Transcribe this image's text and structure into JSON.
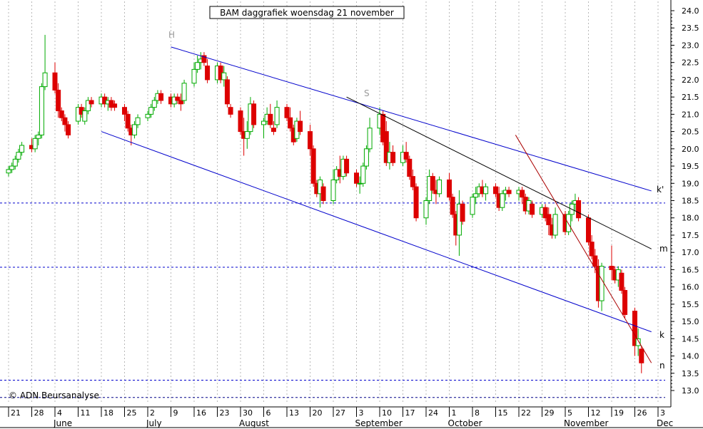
{
  "chart_data": {
    "type": "candlestick",
    "title": "BAM daggrafiek woensdag 21 november",
    "copyright": "© ADN Beursanalyse",
    "ylim": [
      12.7,
      24.2
    ],
    "y_ticks": [
      "24.0",
      "23.5",
      "23.0",
      "22.5",
      "22.0",
      "21.5",
      "21.0",
      "20.5",
      "20.0",
      "19.5",
      "19.0",
      "18.5",
      "18.0",
      "17.5",
      "17.0",
      "16.5",
      "16.0",
      "15.5",
      "15.0",
      "14.5",
      "14.0",
      "13.5",
      "13.0"
    ],
    "x_ticks": [
      "21",
      "28",
      "4",
      "11",
      "18",
      "25",
      "2",
      "9",
      "16",
      "23",
      "30",
      "6",
      "13",
      "20",
      "27",
      "3",
      "10",
      "17",
      "24",
      "1",
      "8",
      "15",
      "22",
      "29",
      "5",
      "12",
      "19",
      "26",
      "3"
    ],
    "month_labels": [
      "June",
      "July",
      "August",
      "September",
      "October",
      "November",
      "Dec"
    ],
    "horizontal_levels": [
      18.43,
      16.57,
      13.3,
      12.8
    ],
    "trend_labels": [
      "k'",
      "m",
      "k",
      "n"
    ],
    "wave_labels": [
      "H",
      "S"
    ],
    "grid": "vertical dotted",
    "colors": {
      "up": "#00aa00",
      "down": "#dd0000",
      "channel": "#0000cc",
      "line_m": "#000000",
      "line_n": "#aa0000",
      "level": "#0000cc"
    },
    "series": [
      {
        "date": "2007-05-21",
        "open": 19.3,
        "high": 19.5,
        "low": 19.2,
        "close": 19.4
      },
      {
        "date": "2007-05-22",
        "open": 19.4,
        "high": 19.6,
        "low": 19.3,
        "close": 19.5
      },
      {
        "date": "2007-05-23",
        "open": 19.5,
        "high": 19.8,
        "low": 19.4,
        "close": 19.7
      },
      {
        "date": "2007-05-24",
        "open": 19.7,
        "high": 20.0,
        "low": 19.6,
        "close": 19.9
      },
      {
        "date": "2007-05-25",
        "open": 19.9,
        "high": 20.2,
        "low": 19.8,
        "close": 20.1
      },
      {
        "date": "2007-05-28",
        "open": 20.1,
        "high": 20.3,
        "low": 19.9,
        "close": 20.0
      },
      {
        "date": "2007-05-29",
        "open": 20.0,
        "high": 20.4,
        "low": 19.9,
        "close": 20.3
      },
      {
        "date": "2007-05-30",
        "open": 20.3,
        "high": 20.5,
        "low": 20.1,
        "close": 20.4
      },
      {
        "date": "2007-05-31",
        "open": 20.4,
        "high": 21.9,
        "low": 20.3,
        "close": 21.8
      },
      {
        "date": "2007-06-01",
        "open": 21.8,
        "high": 23.3,
        "low": 21.7,
        "close": 22.2
      },
      {
        "date": "2007-06-04",
        "open": 22.2,
        "high": 22.5,
        "low": 21.6,
        "close": 21.7
      },
      {
        "date": "2007-06-05",
        "open": 21.7,
        "high": 21.9,
        "low": 20.9,
        "close": 21.1
      },
      {
        "date": "2007-06-06",
        "open": 21.1,
        "high": 21.2,
        "low": 20.8,
        "close": 20.9
      },
      {
        "date": "2007-06-07",
        "open": 20.9,
        "high": 21.0,
        "low": 20.5,
        "close": 20.7
      },
      {
        "date": "2007-06-08",
        "open": 20.7,
        "high": 20.8,
        "low": 20.3,
        "close": 20.4
      },
      {
        "date": "2007-06-11",
        "open": 20.8,
        "high": 21.3,
        "low": 20.7,
        "close": 21.2
      },
      {
        "date": "2007-06-12",
        "open": 21.2,
        "high": 21.3,
        "low": 20.9,
        "close": 21.0
      },
      {
        "date": "2007-06-13",
        "open": 20.8,
        "high": 21.2,
        "low": 20.7,
        "close": 21.1
      },
      {
        "date": "2007-06-14",
        "open": 21.1,
        "high": 21.5,
        "low": 21.0,
        "close": 21.4
      },
      {
        "date": "2007-06-15",
        "open": 21.4,
        "high": 21.5,
        "low": 21.2,
        "close": 21.3
      },
      {
        "date": "2007-06-18",
        "open": 21.3,
        "high": 21.6,
        "low": 21.2,
        "close": 21.5
      },
      {
        "date": "2007-06-19",
        "open": 21.5,
        "high": 21.6,
        "low": 21.2,
        "close": 21.3
      },
      {
        "date": "2007-06-20",
        "open": 21.3,
        "high": 21.5,
        "low": 21.1,
        "close": 21.4
      },
      {
        "date": "2007-06-21",
        "open": 21.4,
        "high": 21.5,
        "low": 21.1,
        "close": 21.2
      },
      {
        "date": "2007-06-22",
        "open": 21.3,
        "high": 21.4,
        "low": 21.1,
        "close": 21.2
      },
      {
        "date": "2007-06-25",
        "open": 21.2,
        "high": 21.3,
        "low": 20.8,
        "close": 21.0
      },
      {
        "date": "2007-06-26",
        "open": 21.0,
        "high": 21.1,
        "low": 20.5,
        "close": 20.6
      },
      {
        "date": "2007-06-27",
        "open": 20.6,
        "high": 20.7,
        "low": 20.1,
        "close": 20.4
      },
      {
        "date": "2007-06-28",
        "open": 20.4,
        "high": 20.8,
        "low": 20.3,
        "close": 20.7
      },
      {
        "date": "2007-06-29",
        "open": 20.7,
        "high": 21.0,
        "low": 20.6,
        "close": 20.9
      },
      {
        "date": "2007-07-02",
        "open": 20.9,
        "high": 21.1,
        "low": 20.8,
        "close": 21.0
      },
      {
        "date": "2007-07-03",
        "open": 21.0,
        "high": 21.3,
        "low": 20.9,
        "close": 21.2
      },
      {
        "date": "2007-07-04",
        "open": 21.2,
        "high": 21.5,
        "low": 21.1,
        "close": 21.4
      },
      {
        "date": "2007-07-05",
        "open": 21.4,
        "high": 21.7,
        "low": 21.3,
        "close": 21.6
      },
      {
        "date": "2007-07-06",
        "open": 21.6,
        "high": 21.7,
        "low": 21.3,
        "close": 21.4
      },
      {
        "date": "2007-07-09",
        "open": 21.5,
        "high": 21.6,
        "low": 21.2,
        "close": 21.3
      },
      {
        "date": "2007-07-10",
        "open": 21.3,
        "high": 21.6,
        "low": 21.2,
        "close": 21.5
      },
      {
        "date": "2007-07-11",
        "open": 21.5,
        "high": 21.6,
        "low": 21.3,
        "close": 21.4
      },
      {
        "date": "2007-07-12",
        "open": 21.4,
        "high": 21.6,
        "low": 21.1,
        "close": 21.3
      },
      {
        "date": "2007-07-13",
        "open": 21.4,
        "high": 22.0,
        "low": 21.3,
        "close": 21.9
      },
      {
        "date": "2007-07-16",
        "open": 21.9,
        "high": 22.5,
        "low": 21.8,
        "close": 22.3
      },
      {
        "date": "2007-07-17",
        "open": 22.3,
        "high": 22.7,
        "low": 22.2,
        "close": 22.5
      },
      {
        "date": "2007-07-18",
        "open": 22.5,
        "high": 22.8,
        "low": 22.3,
        "close": 22.6
      },
      {
        "date": "2007-07-19",
        "open": 22.7,
        "high": 22.8,
        "low": 22.4,
        "close": 22.5
      },
      {
        "date": "2007-07-20",
        "open": 22.4,
        "high": 22.6,
        "low": 21.9,
        "close": 22.0
      },
      {
        "date": "2007-07-23",
        "open": 22.0,
        "high": 22.5,
        "low": 21.9,
        "close": 22.4
      },
      {
        "date": "2007-07-24",
        "open": 22.4,
        "high": 22.5,
        "low": 21.9,
        "close": 22.0
      },
      {
        "date": "2007-07-25",
        "open": 22.0,
        "high": 22.4,
        "low": 21.8,
        "close": 22.2
      },
      {
        "date": "2007-07-26",
        "open": 22.0,
        "high": 22.1,
        "low": 21.2,
        "close": 21.3
      },
      {
        "date": "2007-07-27",
        "open": 21.2,
        "high": 21.3,
        "low": 20.9,
        "close": 21.0
      },
      {
        "date": "2007-07-30",
        "open": 21.1,
        "high": 21.2,
        "low": 20.4,
        "close": 20.5
      },
      {
        "date": "2007-07-31",
        "open": 20.5,
        "high": 20.9,
        "low": 19.8,
        "close": 20.3
      },
      {
        "date": "2007-08-01",
        "open": 20.3,
        "high": 20.8,
        "low": 20.0,
        "close": 20.5
      },
      {
        "date": "2007-08-02",
        "open": 20.5,
        "high": 21.5,
        "low": 20.4,
        "close": 21.3
      },
      {
        "date": "2007-08-03",
        "open": 21.3,
        "high": 21.4,
        "low": 20.6,
        "close": 20.7
      },
      {
        "date": "2007-08-06",
        "open": 20.7,
        "high": 20.9,
        "low": 20.3,
        "close": 20.8
      },
      {
        "date": "2007-08-07",
        "open": 20.8,
        "high": 21.2,
        "low": 20.7,
        "close": 21.0
      },
      {
        "date": "2007-08-08",
        "open": 21.0,
        "high": 21.3,
        "low": 20.6,
        "close": 20.7
      },
      {
        "date": "2007-08-09",
        "open": 20.6,
        "high": 20.8,
        "low": 20.4,
        "close": 20.5
      },
      {
        "date": "2007-08-10",
        "open": 20.7,
        "high": 21.4,
        "low": 20.6,
        "close": 21.2
      },
      {
        "date": "2007-08-13",
        "open": 21.2,
        "high": 21.3,
        "low": 20.8,
        "close": 20.9
      },
      {
        "date": "2007-08-14",
        "open": 20.9,
        "high": 21.2,
        "low": 20.5,
        "close": 20.6
      },
      {
        "date": "2007-08-15",
        "open": 20.6,
        "high": 20.7,
        "low": 20.1,
        "close": 20.2
      },
      {
        "date": "2007-08-16",
        "open": 20.3,
        "high": 20.9,
        "low": 20.2,
        "close": 20.8
      },
      {
        "date": "2007-08-17",
        "open": 20.8,
        "high": 21.1,
        "low": 20.4,
        "close": 20.5
      },
      {
        "date": "2007-08-20",
        "open": 20.5,
        "high": 20.7,
        "low": 19.8,
        "close": 20.0
      },
      {
        "date": "2007-08-21",
        "open": 20.0,
        "high": 20.1,
        "low": 18.9,
        "close": 19.0
      },
      {
        "date": "2007-08-22",
        "open": 19.0,
        "high": 19.1,
        "low": 18.6,
        "close": 18.7
      },
      {
        "date": "2007-08-23",
        "open": 18.7,
        "high": 19.2,
        "low": 18.3,
        "close": 19.1
      },
      {
        "date": "2007-08-24",
        "open": 18.9,
        "high": 19.0,
        "low": 18.4,
        "close": 18.5
      },
      {
        "date": "2007-08-27",
        "open": 18.5,
        "high": 19.4,
        "low": 18.4,
        "close": 19.1
      },
      {
        "date": "2007-08-28",
        "open": 19.1,
        "high": 19.5,
        "low": 19.0,
        "close": 19.4
      },
      {
        "date": "2007-08-29",
        "open": 19.4,
        "high": 19.8,
        "low": 19.0,
        "close": 19.2
      },
      {
        "date": "2007-08-30",
        "open": 19.2,
        "high": 19.8,
        "low": 19.1,
        "close": 19.7
      },
      {
        "date": "2007-08-31",
        "open": 19.7,
        "high": 19.8,
        "low": 19.2,
        "close": 19.3
      },
      {
        "date": "2007-09-03",
        "open": 19.3,
        "high": 19.4,
        "low": 18.9,
        "close": 19.0
      },
      {
        "date": "2007-09-04",
        "open": 19.0,
        "high": 19.2,
        "low": 18.7,
        "close": 19.0
      },
      {
        "date": "2007-09-05",
        "open": 19.0,
        "high": 19.6,
        "low": 18.9,
        "close": 19.5
      },
      {
        "date": "2007-09-06",
        "open": 19.5,
        "high": 20.1,
        "low": 19.4,
        "close": 20.0
      },
      {
        "date": "2007-09-07",
        "open": 20.0,
        "high": 20.9,
        "low": 19.9,
        "close": 20.6
      },
      {
        "date": "2007-09-10",
        "open": 20.6,
        "high": 21.2,
        "low": 20.4,
        "close": 21.0
      },
      {
        "date": "2007-09-11",
        "open": 21.0,
        "high": 21.1,
        "low": 20.1,
        "close": 20.2
      },
      {
        "date": "2007-09-12",
        "open": 20.5,
        "high": 20.8,
        "low": 19.5,
        "close": 19.6
      },
      {
        "date": "2007-09-13",
        "open": 19.6,
        "high": 20.2,
        "low": 19.4,
        "close": 19.9
      },
      {
        "date": "2007-09-14",
        "open": 19.9,
        "high": 20.1,
        "low": 19.5,
        "close": 19.6
      },
      {
        "date": "2007-09-17",
        "open": 19.6,
        "high": 20.1,
        "low": 19.5,
        "close": 19.9
      },
      {
        "date": "2007-09-18",
        "open": 19.9,
        "high": 20.2,
        "low": 19.6,
        "close": 19.7
      },
      {
        "date": "2007-09-19",
        "open": 19.7,
        "high": 19.8,
        "low": 19.1,
        "close": 19.2
      },
      {
        "date": "2007-09-20",
        "open": 19.2,
        "high": 19.4,
        "low": 18.8,
        "close": 18.9
      },
      {
        "date": "2007-09-21",
        "open": 18.9,
        "high": 19.0,
        "low": 17.9,
        "close": 18.0
      },
      {
        "date": "2007-09-24",
        "open": 18.0,
        "high": 18.6,
        "low": 17.8,
        "close": 18.5
      },
      {
        "date": "2007-09-25",
        "open": 18.5,
        "high": 19.4,
        "low": 18.4,
        "close": 19.2
      },
      {
        "date": "2007-09-26",
        "open": 19.2,
        "high": 19.3,
        "low": 18.7,
        "close": 18.8
      },
      {
        "date": "2007-09-27",
        "open": 18.8,
        "high": 19.1,
        "low": 18.4,
        "close": 18.7
      },
      {
        "date": "2007-09-28",
        "open": 18.7,
        "high": 19.2,
        "low": 18.6,
        "close": 19.1
      },
      {
        "date": "2007-10-01",
        "open": 19.1,
        "high": 19.3,
        "low": 18.5,
        "close": 18.6
      },
      {
        "date": "2007-10-02",
        "open": 18.6,
        "high": 18.7,
        "low": 18.0,
        "close": 18.1
      },
      {
        "date": "2007-10-03",
        "open": 18.1,
        "high": 18.2,
        "low": 17.2,
        "close": 17.5
      },
      {
        "date": "2007-10-04",
        "open": 17.5,
        "high": 18.8,
        "low": 16.9,
        "close": 18.4
      },
      {
        "date": "2007-10-05",
        "open": 18.4,
        "high": 18.5,
        "low": 17.8,
        "close": 17.9
      },
      {
        "date": "2007-10-08",
        "open": 18.1,
        "high": 18.7,
        "low": 18.0,
        "close": 18.6
      },
      {
        "date": "2007-10-09",
        "open": 18.6,
        "high": 18.9,
        "low": 18.4,
        "close": 18.7
      },
      {
        "date": "2007-10-10",
        "open": 18.7,
        "high": 19.0,
        "low": 18.6,
        "close": 18.9
      },
      {
        "date": "2007-10-11",
        "open": 18.9,
        "high": 19.1,
        "low": 18.6,
        "close": 18.7
      },
      {
        "date": "2007-10-12",
        "open": 18.7,
        "high": 19.0,
        "low": 18.5,
        "close": 18.9
      },
      {
        "date": "2007-10-15",
        "open": 18.9,
        "high": 19.0,
        "low": 18.6,
        "close": 18.7
      },
      {
        "date": "2007-10-16",
        "open": 18.7,
        "high": 18.9,
        "low": 18.2,
        "close": 18.3
      },
      {
        "date": "2007-10-17",
        "open": 18.3,
        "high": 18.8,
        "low": 18.2,
        "close": 18.7
      },
      {
        "date": "2007-10-18",
        "open": 18.7,
        "high": 18.9,
        "low": 18.5,
        "close": 18.8
      },
      {
        "date": "2007-10-19",
        "open": 18.8,
        "high": 18.9,
        "low": 18.6,
        "close": 18.7
      },
      {
        "date": "2007-10-22",
        "open": 18.7,
        "high": 18.9,
        "low": 18.5,
        "close": 18.8
      },
      {
        "date": "2007-10-23",
        "open": 18.8,
        "high": 18.9,
        "low": 18.4,
        "close": 18.6
      },
      {
        "date": "2007-10-24",
        "open": 18.6,
        "high": 18.7,
        "low": 18.1,
        "close": 18.2
      },
      {
        "date": "2007-10-25",
        "open": 18.2,
        "high": 18.6,
        "low": 18.1,
        "close": 18.5
      },
      {
        "date": "2007-10-26",
        "open": 18.4,
        "high": 18.5,
        "low": 18.0,
        "close": 18.1
      },
      {
        "date": "2007-10-29",
        "open": 18.1,
        "high": 18.4,
        "low": 18.0,
        "close": 18.3
      },
      {
        "date": "2007-10-30",
        "open": 18.3,
        "high": 18.4,
        "low": 17.9,
        "close": 18.0
      },
      {
        "date": "2007-10-31",
        "open": 18.1,
        "high": 18.3,
        "low": 17.5,
        "close": 17.8
      },
      {
        "date": "2007-11-01",
        "open": 17.8,
        "high": 18.0,
        "low": 17.4,
        "close": 17.5
      },
      {
        "date": "2007-11-02",
        "open": 17.5,
        "high": 18.3,
        "low": 17.4,
        "close": 18.1
      },
      {
        "date": "2007-11-05",
        "open": 18.1,
        "high": 18.2,
        "low": 17.5,
        "close": 17.6
      },
      {
        "date": "2007-11-06",
        "open": 17.6,
        "high": 18.2,
        "low": 17.5,
        "close": 18.1
      },
      {
        "date": "2007-11-07",
        "open": 18.1,
        "high": 18.5,
        "low": 17.9,
        "close": 18.4
      },
      {
        "date": "2007-11-08",
        "open": 18.4,
        "high": 18.7,
        "low": 18.2,
        "close": 18.5
      },
      {
        "date": "2007-11-09",
        "open": 18.5,
        "high": 18.6,
        "low": 17.9,
        "close": 18.0
      },
      {
        "date": "2007-11-12",
        "open": 18.0,
        "high": 18.1,
        "low": 17.2,
        "close": 17.3
      },
      {
        "date": "2007-11-13",
        "open": 17.3,
        "high": 17.5,
        "low": 16.8,
        "close": 16.9
      },
      {
        "date": "2007-11-14",
        "open": 16.9,
        "high": 17.1,
        "low": 16.4,
        "close": 16.6
      },
      {
        "date": "2007-11-15",
        "open": 16.6,
        "high": 16.8,
        "low": 15.4,
        "close": 15.6
      },
      {
        "date": "2007-11-16",
        "open": 15.6,
        "high": 16.7,
        "low": 15.3,
        "close": 16.6
      },
      {
        "date": "2007-11-19",
        "open": 16.6,
        "high": 17.2,
        "low": 16.2,
        "close": 16.5
      },
      {
        "date": "2007-11-20",
        "open": 16.5,
        "high": 16.6,
        "low": 16.1,
        "close": 16.2
      },
      {
        "date": "2007-11-21",
        "open": 16.2,
        "high": 16.6,
        "low": 16.0,
        "close": 16.5
      },
      {
        "date": "2007-11-22",
        "open": 16.4,
        "high": 16.5,
        "low": 15.8,
        "close": 15.9
      },
      {
        "date": "2007-11-23",
        "open": 15.9,
        "high": 16.0,
        "low": 15.1,
        "close": 15.2
      },
      {
        "date": "2007-11-26",
        "open": 15.3,
        "high": 15.4,
        "low": 14.0,
        "close": 14.3
      },
      {
        "date": "2007-11-27",
        "open": 14.3,
        "high": 14.8,
        "low": 14.0,
        "close": 14.5
      },
      {
        "date": "2007-11-28",
        "open": 14.2,
        "high": 14.3,
        "low": 13.5,
        "close": 13.8
      }
    ]
  }
}
